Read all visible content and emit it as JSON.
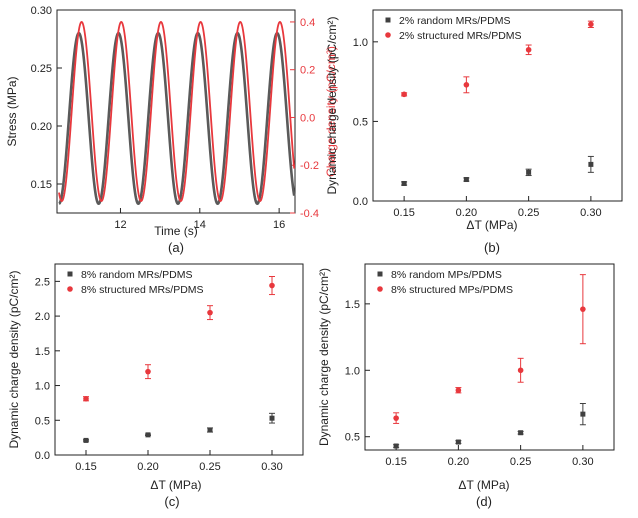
{
  "colors": {
    "stress": "#5a5a5a",
    "charge": "#e8383d",
    "random": "#404040",
    "structured": "#e8383d"
  },
  "chart_data": [
    {
      "id": "a",
      "type": "line",
      "panel_label": "(a)",
      "xlabel": "Time (s)",
      "ylabel_left": "Stress (MPa)",
      "ylabel_right": "Charge density (pC/cm²)",
      "xlim": [
        10.4,
        16.4
      ],
      "ylim_left": [
        0.125,
        0.3
      ],
      "ylim_right": [
        -0.4,
        0.45
      ],
      "xticks": [
        "12",
        "14",
        "16"
      ],
      "yticks_left": [
        "0.15",
        "0.20",
        "0.25",
        "0.30"
      ],
      "yticks_right": [
        "-0.4",
        "-0.2",
        "0.0",
        "0.2",
        "0.4"
      ],
      "series": [
        {
          "axis": "left",
          "period_s": 1.0,
          "first_peak_s": 10.95,
          "min": 0.133,
          "max": 0.28
        },
        {
          "axis": "right",
          "period_s": 1.0,
          "first_peak_s": 11.02,
          "min": -0.35,
          "max": 0.4
        }
      ]
    },
    {
      "id": "b",
      "type": "scatter",
      "panel_label": "(b)",
      "xlabel": "ΔT (MPa)",
      "ylabel": "Dynamic charge density (pC/cm²)",
      "xlim": [
        0.125,
        0.325
      ],
      "ylim": [
        0.0,
        1.2
      ],
      "xticks": [
        "0.15",
        "0.20",
        "0.25",
        "0.30"
      ],
      "yticks": [
        "0.0",
        "0.5",
        "1.0"
      ],
      "x": [
        0.15,
        0.2,
        0.25,
        0.3
      ],
      "legend_position": "top-left",
      "series": [
        {
          "name": "2% random MRs/PDMS",
          "marker": "square",
          "values": [
            0.11,
            0.135,
            0.18,
            0.23
          ],
          "errors": [
            0.01,
            0.01,
            0.02,
            0.05
          ]
        },
        {
          "name": "2% structured MRs/PDMS",
          "marker": "circle",
          "values": [
            0.67,
            0.73,
            0.95,
            1.11
          ],
          "errors": [
            0.01,
            0.05,
            0.03,
            0.02
          ]
        }
      ]
    },
    {
      "id": "c",
      "type": "scatter",
      "panel_label": "(c)",
      "xlabel": "ΔT (MPa)",
      "ylabel": "Dynamic charge density (pC/cm²)",
      "xlim": [
        0.125,
        0.325
      ],
      "ylim": [
        0.0,
        2.75
      ],
      "xticks": [
        "0.15",
        "0.20",
        "0.25",
        "0.30"
      ],
      "yticks": [
        "0.0",
        "0.5",
        "1.0",
        "1.5",
        "2.0",
        "2.5"
      ],
      "x": [
        0.15,
        0.2,
        0.25,
        0.3
      ],
      "legend_position": "top-left",
      "series": [
        {
          "name": "8% random MRs/PDMS",
          "marker": "square",
          "values": [
            0.21,
            0.29,
            0.36,
            0.53
          ],
          "errors": [
            0.01,
            0.01,
            0.03,
            0.07
          ]
        },
        {
          "name": "8% structured MRs/PDMS",
          "marker": "circle",
          "values": [
            0.81,
            1.2,
            2.05,
            2.44
          ],
          "errors": [
            0.03,
            0.1,
            0.1,
            0.13
          ]
        }
      ]
    },
    {
      "id": "d",
      "type": "scatter",
      "panel_label": "(d)",
      "xlabel": "ΔT (MPa)",
      "ylabel": "Dynamic charge density (pC/cm²)",
      "xlim": [
        0.125,
        0.325
      ],
      "ylim": [
        0.4,
        1.8
      ],
      "xticks": [
        "0.15",
        "0.20",
        "0.25",
        "0.30"
      ],
      "yticks": [
        "0.5",
        "1.0",
        "1.5"
      ],
      "x": [
        0.15,
        0.2,
        0.25,
        0.3
      ],
      "legend_position": "top-left",
      "series": [
        {
          "name": "8% random MPs/PDMS",
          "marker": "square",
          "values": [
            0.43,
            0.46,
            0.53,
            0.67
          ],
          "errors": [
            0.01,
            0.01,
            0.01,
            0.08
          ]
        },
        {
          "name": "8% structured MPs/PDMS",
          "marker": "circle",
          "values": [
            0.64,
            0.85,
            1.0,
            1.46
          ],
          "errors": [
            0.04,
            0.02,
            0.09,
            0.26
          ]
        }
      ]
    }
  ]
}
